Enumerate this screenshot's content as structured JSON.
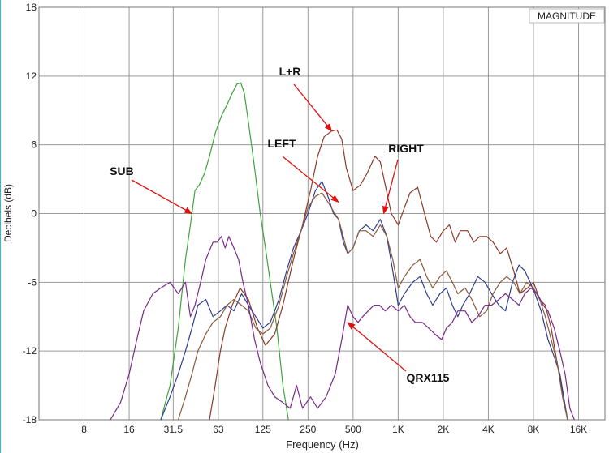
{
  "chart_data": {
    "type": "line",
    "x_scale": "log",
    "xlabel": "Frequency (Hz)",
    "ylabel": "Decibels (dB)",
    "corner_label": "MAGNITUDE",
    "xlim": [
      4,
      24000
    ],
    "ylim": [
      -18,
      18
    ],
    "x_ticks": [
      {
        "v": 8,
        "label": "8"
      },
      {
        "v": 16,
        "label": "16"
      },
      {
        "v": 31.5,
        "label": "31.5"
      },
      {
        "v": 63,
        "label": "63"
      },
      {
        "v": 125,
        "label": "125"
      },
      {
        "v": 250,
        "label": "250"
      },
      {
        "v": 500,
        "label": "500"
      },
      {
        "v": 1000,
        "label": "1K"
      },
      {
        "v": 2000,
        "label": "2K"
      },
      {
        "v": 4000,
        "label": "4K"
      },
      {
        "v": 8000,
        "label": "8K"
      },
      {
        "v": 16000,
        "label": "16K"
      }
    ],
    "y_ticks": [
      {
        "v": -18,
        "label": "-18"
      },
      {
        "v": -12,
        "label": "-12"
      },
      {
        "v": -6,
        "label": "-6"
      },
      {
        "v": 0,
        "label": "0"
      },
      {
        "v": 6,
        "label": "6"
      },
      {
        "v": 12,
        "label": "12"
      },
      {
        "v": 18,
        "label": "18"
      }
    ],
    "grid": true,
    "series": [
      {
        "name": "SUB",
        "color": "#3ea33e",
        "points": [
          [
            26,
            -18
          ],
          [
            30,
            -15
          ],
          [
            34,
            -10
          ],
          [
            38,
            -4
          ],
          [
            41,
            -1
          ],
          [
            44,
            2
          ],
          [
            47,
            2.5
          ],
          [
            51,
            3.5
          ],
          [
            55,
            5
          ],
          [
            60,
            7
          ],
          [
            66,
            8.5
          ],
          [
            72,
            9.5
          ],
          [
            78,
            10.5
          ],
          [
            84,
            11.3
          ],
          [
            89,
            11.4
          ],
          [
            94,
            10.5
          ],
          [
            100,
            8
          ],
          [
            110,
            4
          ],
          [
            120,
            0
          ],
          [
            130,
            -3
          ],
          [
            140,
            -6
          ],
          [
            155,
            -10
          ],
          [
            170,
            -15
          ],
          [
            185,
            -18
          ]
        ]
      },
      {
        "name": "L+R",
        "color": "#8b3a2a",
        "points": [
          [
            55,
            -18
          ],
          [
            60,
            -15
          ],
          [
            65,
            -12
          ],
          [
            70,
            -10
          ],
          [
            78,
            -8
          ],
          [
            88,
            -6.5
          ],
          [
            100,
            -7.5
          ],
          [
            115,
            -10
          ],
          [
            130,
            -11.5
          ],
          [
            150,
            -10.5
          ],
          [
            170,
            -8
          ],
          [
            200,
            -4
          ],
          [
            230,
            -1
          ],
          [
            260,
            2
          ],
          [
            290,
            5
          ],
          [
            320,
            6.7
          ],
          [
            360,
            7.2
          ],
          [
            390,
            7.3
          ],
          [
            420,
            6.5
          ],
          [
            450,
            4
          ],
          [
            500,
            2
          ],
          [
            560,
            2.5
          ],
          [
            620,
            3.5
          ],
          [
            700,
            5
          ],
          [
            760,
            4.5
          ],
          [
            820,
            2.5
          ],
          [
            900,
            0
          ],
          [
            1000,
            -1
          ],
          [
            1100,
            0.5
          ],
          [
            1200,
            1.8
          ],
          [
            1350,
            2.3
          ],
          [
            1500,
            0
          ],
          [
            1650,
            -2
          ],
          [
            1800,
            -2.5
          ],
          [
            2000,
            -1.5
          ],
          [
            2200,
            -1
          ],
          [
            2400,
            -2.5
          ],
          [
            2600,
            -1.5
          ],
          [
            2900,
            -1.5
          ],
          [
            3200,
            -2.5
          ],
          [
            3500,
            -2
          ],
          [
            3900,
            -2
          ],
          [
            4300,
            -2.5
          ],
          [
            4800,
            -3.5
          ],
          [
            5300,
            -3
          ],
          [
            5900,
            -5
          ],
          [
            6500,
            -7
          ],
          [
            7300,
            -6.5
          ],
          [
            8000,
            -6
          ],
          [
            8800,
            -7.5
          ],
          [
            9600,
            -8
          ],
          [
            10500,
            -10
          ],
          [
            11500,
            -13
          ],
          [
            12500,
            -15.5
          ],
          [
            13500,
            -18
          ]
        ]
      },
      {
        "name": "LEFT",
        "color": "#2e3f8f",
        "points": [
          [
            26,
            -18
          ],
          [
            30,
            -16
          ],
          [
            34,
            -14
          ],
          [
            38,
            -12
          ],
          [
            42,
            -10
          ],
          [
            46,
            -8
          ],
          [
            52,
            -7.5
          ],
          [
            58,
            -9
          ],
          [
            65,
            -8.5
          ],
          [
            72,
            -8
          ],
          [
            80,
            -8.5
          ],
          [
            90,
            -7
          ],
          [
            100,
            -8
          ],
          [
            112,
            -9
          ],
          [
            125,
            -10
          ],
          [
            140,
            -9.5
          ],
          [
            160,
            -7.5
          ],
          [
            180,
            -5
          ],
          [
            200,
            -3
          ],
          [
            225,
            -1.5
          ],
          [
            250,
            0
          ],
          [
            280,
            2
          ],
          [
            310,
            2.8
          ],
          [
            340,
            1.5
          ],
          [
            370,
            0
          ],
          [
            400,
            -0.5
          ],
          [
            430,
            -2.5
          ],
          [
            460,
            -3.5
          ],
          [
            500,
            -3
          ],
          [
            550,
            -1.5
          ],
          [
            610,
            -1
          ],
          [
            680,
            -1.5
          ],
          [
            760,
            -0.5
          ],
          [
            840,
            -2
          ],
          [
            920,
            -5
          ],
          [
            1000,
            -8
          ],
          [
            1100,
            -7
          ],
          [
            1250,
            -6
          ],
          [
            1400,
            -5.5
          ],
          [
            1550,
            -7
          ],
          [
            1700,
            -8
          ],
          [
            1900,
            -7
          ],
          [
            2100,
            -6.5
          ],
          [
            2300,
            -8
          ],
          [
            2500,
            -9
          ],
          [
            2700,
            -8
          ],
          [
            3000,
            -7
          ],
          [
            3400,
            -5.5
          ],
          [
            3800,
            -6
          ],
          [
            4200,
            -7
          ],
          [
            4700,
            -8
          ],
          [
            5200,
            -8.5
          ],
          [
            5800,
            -6
          ],
          [
            6400,
            -4.5
          ],
          [
            7000,
            -5
          ],
          [
            7600,
            -6
          ],
          [
            8200,
            -7
          ],
          [
            9000,
            -8.5
          ],
          [
            10000,
            -11
          ],
          [
            11000,
            -12.5
          ],
          [
            12000,
            -14
          ],
          [
            13500,
            -18
          ]
        ]
      },
      {
        "name": "RIGHT",
        "color": "#8b5a3a",
        "points": [
          [
            34,
            -18
          ],
          [
            38,
            -16
          ],
          [
            42,
            -14
          ],
          [
            46,
            -12
          ],
          [
            52,
            -10.5
          ],
          [
            58,
            -9.5
          ],
          [
            65,
            -9
          ],
          [
            72,
            -8
          ],
          [
            80,
            -7.5
          ],
          [
            90,
            -8
          ],
          [
            100,
            -8.5
          ],
          [
            112,
            -10
          ],
          [
            125,
            -10.5
          ],
          [
            140,
            -10
          ],
          [
            160,
            -8
          ],
          [
            180,
            -5.5
          ],
          [
            200,
            -3.5
          ],
          [
            225,
            -1.5
          ],
          [
            250,
            0.5
          ],
          [
            280,
            1.5
          ],
          [
            310,
            1.8
          ],
          [
            340,
            1
          ],
          [
            370,
            0.2
          ],
          [
            400,
            -0.5
          ],
          [
            430,
            -2
          ],
          [
            460,
            -3.5
          ],
          [
            500,
            -3
          ],
          [
            550,
            -1.5
          ],
          [
            610,
            -1.5
          ],
          [
            680,
            -2
          ],
          [
            760,
            -1
          ],
          [
            840,
            -2
          ],
          [
            920,
            -4
          ],
          [
            1000,
            -6.5
          ],
          [
            1100,
            -5.5
          ],
          [
            1250,
            -4.5
          ],
          [
            1400,
            -4
          ],
          [
            1550,
            -5.5
          ],
          [
            1700,
            -6.5
          ],
          [
            1900,
            -5.5
          ],
          [
            2100,
            -5
          ],
          [
            2300,
            -6
          ],
          [
            2500,
            -7
          ],
          [
            2800,
            -6.5
          ],
          [
            3100,
            -7.5
          ],
          [
            3500,
            -9
          ],
          [
            3900,
            -8.5
          ],
          [
            4300,
            -7
          ],
          [
            4800,
            -6
          ],
          [
            5300,
            -5.5
          ],
          [
            5900,
            -6
          ],
          [
            6500,
            -7
          ],
          [
            7200,
            -6
          ],
          [
            8000,
            -6.5
          ],
          [
            8800,
            -7.5
          ],
          [
            9600,
            -9
          ],
          [
            10500,
            -11
          ],
          [
            11500,
            -13
          ],
          [
            12500,
            -16
          ],
          [
            13500,
            -18
          ]
        ]
      },
      {
        "name": "QRX115",
        "color": "#7a2a8a",
        "points": [
          [
            12,
            -18
          ],
          [
            14,
            -16.5
          ],
          [
            16,
            -14
          ],
          [
            18,
            -11
          ],
          [
            20,
            -8.5
          ],
          [
            23,
            -7
          ],
          [
            26,
            -6.5
          ],
          [
            30,
            -6
          ],
          [
            34,
            -7
          ],
          [
            38,
            -6
          ],
          [
            41,
            -9
          ],
          [
            44,
            -8
          ],
          [
            48,
            -6
          ],
          [
            52,
            -4
          ],
          [
            58,
            -2.5
          ],
          [
            62,
            -2.5
          ],
          [
            66,
            -2
          ],
          [
            70,
            -3
          ],
          [
            74,
            -2
          ],
          [
            80,
            -3
          ],
          [
            86,
            -4
          ],
          [
            92,
            -6
          ],
          [
            100,
            -8
          ],
          [
            110,
            -11
          ],
          [
            120,
            -13
          ],
          [
            135,
            -15
          ],
          [
            150,
            -16
          ],
          [
            170,
            -16.5
          ],
          [
            190,
            -17
          ],
          [
            210,
            -15
          ],
          [
            230,
            -17
          ],
          [
            260,
            -16
          ],
          [
            290,
            -17
          ],
          [
            330,
            -16
          ],
          [
            380,
            -14
          ],
          [
            420,
            -11
          ],
          [
            460,
            -8
          ],
          [
            500,
            -9
          ],
          [
            540,
            -9.5
          ],
          [
            580,
            -9
          ],
          [
            630,
            -8.5
          ],
          [
            690,
            -8
          ],
          [
            750,
            -8
          ],
          [
            820,
            -8.5
          ],
          [
            900,
            -8
          ],
          [
            1000,
            -8.5
          ],
          [
            1100,
            -8
          ],
          [
            1200,
            -9
          ],
          [
            1300,
            -9.5
          ],
          [
            1450,
            -9.5
          ],
          [
            1600,
            -10
          ],
          [
            1750,
            -10.5
          ],
          [
            1950,
            -11
          ],
          [
            2100,
            -10
          ],
          [
            2300,
            -9.5
          ],
          [
            2500,
            -8.5
          ],
          [
            2800,
            -8.5
          ],
          [
            3100,
            -9.5
          ],
          [
            3400,
            -9
          ],
          [
            3800,
            -8
          ],
          [
            4200,
            -8
          ],
          [
            4700,
            -7.5
          ],
          [
            5200,
            -7
          ],
          [
            5800,
            -7.5
          ],
          [
            6400,
            -8
          ],
          [
            7000,
            -7
          ],
          [
            7700,
            -6.5
          ],
          [
            8500,
            -7
          ],
          [
            9300,
            -8
          ],
          [
            10000,
            -8.5
          ],
          [
            11000,
            -10
          ],
          [
            12000,
            -12
          ],
          [
            13000,
            -14
          ],
          [
            14000,
            -17
          ],
          [
            15000,
            -18
          ]
        ]
      }
    ],
    "annotations": [
      {
        "text": "L+R",
        "target": [
          360,
          7.2
        ]
      },
      {
        "text": "LEFT",
        "target": [
          400,
          1
        ]
      },
      {
        "text": "RIGHT",
        "target": [
          800,
          0
        ]
      },
      {
        "text": "SUB",
        "target": [
          42,
          0
        ]
      },
      {
        "text": "QRX115",
        "target": [
          460,
          -9.5
        ]
      }
    ]
  }
}
